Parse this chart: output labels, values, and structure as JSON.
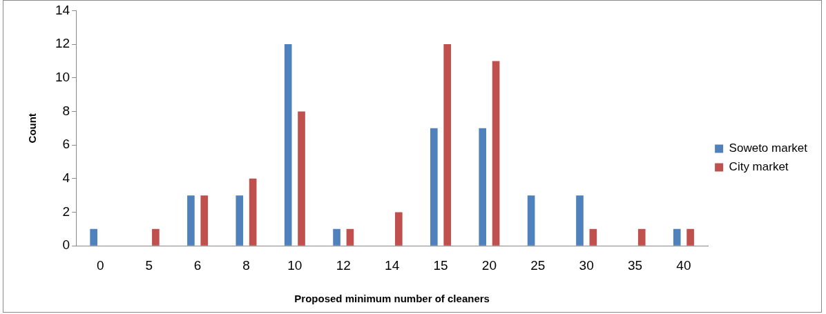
{
  "chart_data": {
    "type": "bar",
    "xlabel": "Proposed minimum number of cleaners",
    "ylabel": "Count",
    "categories": [
      "0",
      "5",
      "6",
      "8",
      "10",
      "12",
      "14",
      "15",
      "20",
      "25",
      "30",
      "35",
      "40"
    ],
    "series": [
      {
        "name": "Soweto market",
        "color": "#4f81bd",
        "values": [
          1,
          0,
          3,
          3,
          12,
          1,
          0,
          7,
          7,
          3,
          3,
          0,
          1
        ]
      },
      {
        "name": "City market",
        "color": "#c0504d",
        "values": [
          0,
          1,
          3,
          4,
          8,
          1,
          2,
          12,
          11,
          0,
          1,
          1,
          1
        ]
      }
    ],
    "ylim": [
      0,
      14
    ],
    "yticks": [
      0,
      2,
      4,
      6,
      8,
      10,
      12,
      14
    ],
    "grid": false,
    "legend": "right"
  }
}
